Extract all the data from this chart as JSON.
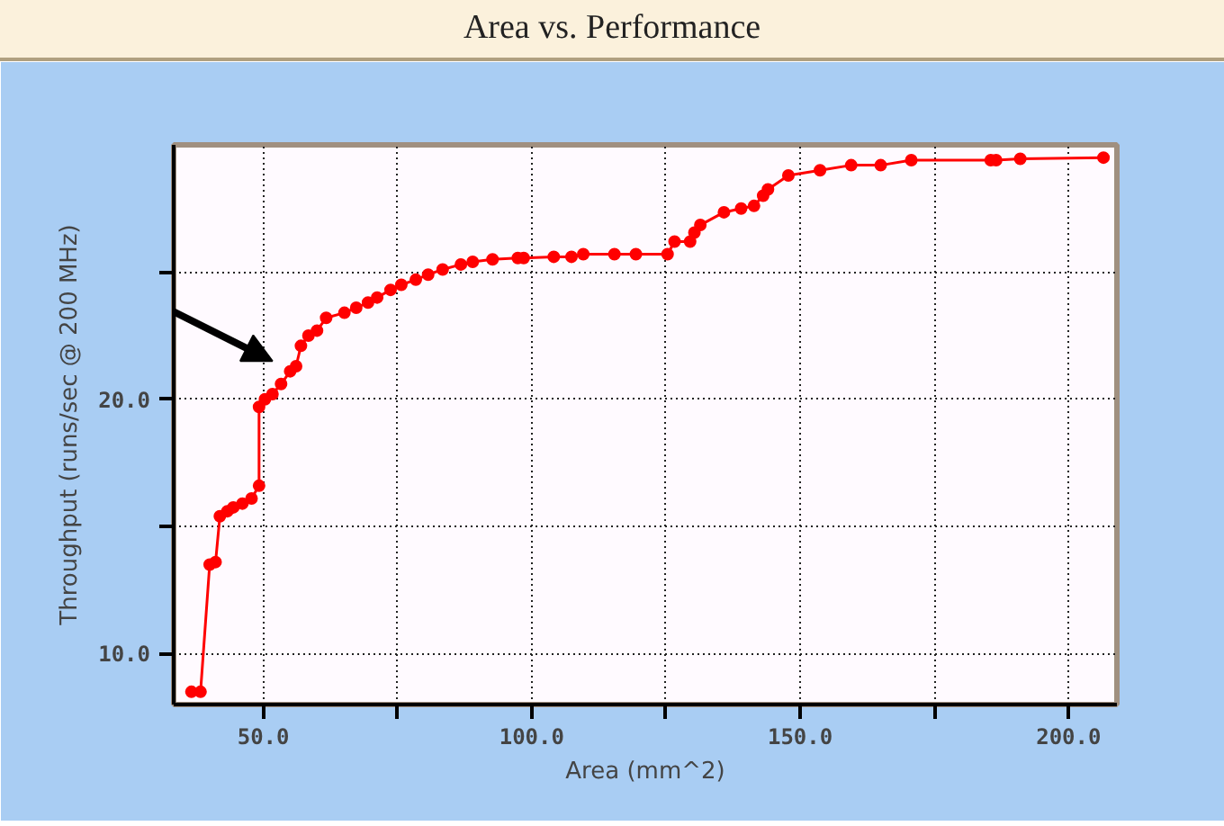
{
  "chart_data": {
    "type": "line",
    "title": "Area vs. Performance",
    "xlabel": "Area (mm^2)",
    "ylabel": "Throughput (runs/sec @ 200 MHz)",
    "xlim": [
      33.3,
      209
    ],
    "ylim": [
      8,
      30
    ],
    "xticks": [
      {
        "value": 50,
        "label": "50.0"
      },
      {
        "value": 75,
        "label": null
      },
      {
        "value": 100,
        "label": "100.0"
      },
      {
        "value": 125,
        "label": null
      },
      {
        "value": 150,
        "label": "150.0"
      },
      {
        "value": 175,
        "label": null
      },
      {
        "value": 200,
        "label": "200.0"
      }
    ],
    "yticks": [
      {
        "value": 10,
        "label": "10.0"
      },
      {
        "value": 15,
        "label": null
      },
      {
        "value": 20,
        "label": "20.0"
      },
      {
        "value": 25,
        "label": null
      }
    ],
    "grid": true,
    "marker": "circle",
    "line_style": "solid",
    "series": [
      {
        "color": "#ff0000",
        "x": [
          36.6,
          38.3,
          40.0,
          41.1,
          41.9,
          43.3,
          44.4,
          46.1,
          47.8,
          49.2,
          49.2,
          50.3,
          51.7,
          53.3,
          55.0,
          56.1,
          57.0,
          58.4,
          60.0,
          61.7,
          65.1,
          67.3,
          69.5,
          71.2,
          73.7,
          75.7,
          78.4,
          80.7,
          83.4,
          86.8,
          89.0,
          92.7,
          97.4,
          98.5,
          104.1,
          107.4,
          109.6,
          115.4,
          119.4,
          125.3,
          126.6,
          129.5,
          130.3,
          131.4,
          135.8,
          139.0,
          141.4,
          143.1,
          144.0,
          147.8,
          153.7,
          159.5,
          165.0,
          170.7,
          185.5,
          186.5,
          191.0,
          206.5
        ],
        "values": [
          8.5,
          8.5,
          13.5,
          13.6,
          15.4,
          15.6,
          15.75,
          15.9,
          16.1,
          16.6,
          19.7,
          20.0,
          20.2,
          20.6,
          21.1,
          21.3,
          22.1,
          22.5,
          22.7,
          23.2,
          23.4,
          23.6,
          23.8,
          24.0,
          24.3,
          24.5,
          24.7,
          24.9,
          25.1,
          25.3,
          25.4,
          25.5,
          25.55,
          25.55,
          25.6,
          25.6,
          25.7,
          25.7,
          25.7,
          25.7,
          26.2,
          26.2,
          26.55,
          26.85,
          27.35,
          27.5,
          27.6,
          28.0,
          28.25,
          28.8,
          29.0,
          29.2,
          29.2,
          29.4,
          29.4,
          29.4,
          29.45,
          29.5
        ]
      }
    ]
  }
}
